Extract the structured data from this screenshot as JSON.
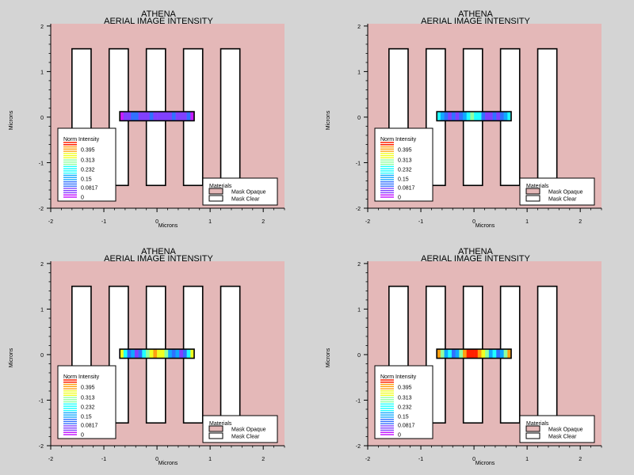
{
  "chart_data": [
    {
      "type": "heatmap",
      "title": "ATHENA",
      "subtitle": "AERIAL IMAGE INTENSITY",
      "xlabel": "Microns",
      "ylabel": "Microns",
      "xlim": [
        -2,
        2.4
      ],
      "ylim": [
        -2,
        2.05
      ],
      "x_ticks": [
        "-2",
        "-1",
        "0",
        "1",
        "2"
      ],
      "y_ticks": [
        "2",
        "1",
        "0",
        "-1",
        "-2"
      ],
      "colorbar": {
        "title": "Norm Intensity",
        "labels": [
          "0.395",
          "0.313",
          "0.232",
          "0.15",
          "0.0817",
          "0"
        ]
      },
      "legend": {
        "title": "Materials",
        "items": [
          {
            "label": "Mask Opaque",
            "color": "#e4b8b8"
          },
          {
            "label": "Mask Clear",
            "color": "#ffffff"
          }
        ]
      },
      "mask_lines": [
        {
          "x0": -1.6,
          "x1": -1.24
        },
        {
          "x0": -0.9,
          "x1": -0.54
        },
        {
          "x0": -0.2,
          "x1": 0.16
        },
        {
          "x0": 0.5,
          "x1": 0.86
        },
        {
          "x0": 1.2,
          "x1": 1.56
        }
      ],
      "mask_y_range": [
        -1.5,
        1.5
      ],
      "intensity_x_range": [
        -0.7,
        0.7
      ],
      "intensity_y_range": [
        -0.08,
        0.12
      ],
      "intensity_profile": [
        0.02,
        0.05,
        0.03,
        0.08,
        0.11,
        0.06,
        0.03,
        0.06,
        0.09,
        0.05,
        0.03,
        0.05,
        0.04,
        0.06,
        0.1,
        0.07,
        0.04,
        0.07,
        0.08,
        0.02
      ]
    },
    {
      "type": "heatmap",
      "title": "ATHENA",
      "subtitle": "AERIAL IMAGE INTENSITY",
      "xlabel": "Microns",
      "ylabel": "Microns",
      "xlim": [
        -2,
        2.4
      ],
      "ylim": [
        -2,
        2.05
      ],
      "x_ticks": [
        "-2",
        "-1",
        "0",
        "1",
        "2"
      ],
      "y_ticks": [
        "2",
        "1",
        "0",
        "-1",
        "-2"
      ],
      "colorbar": {
        "title": "Norm Intensity",
        "labels": [
          "0.395",
          "0.313",
          "0.232",
          "0.15",
          "0.0817",
          "0"
        ]
      },
      "legend": {
        "title": "Materials",
        "items": [
          {
            "label": "Mask Opaque",
            "color": "#e4b8b8"
          },
          {
            "label": "Mask Clear",
            "color": "#ffffff"
          }
        ]
      },
      "mask_lines": [
        {
          "x0": -1.6,
          "x1": -1.24
        },
        {
          "x0": -0.9,
          "x1": -0.54
        },
        {
          "x0": -0.2,
          "x1": 0.16
        },
        {
          "x0": 0.5,
          "x1": 0.86
        },
        {
          "x0": 1.2,
          "x1": 1.56
        }
      ],
      "mask_y_range": [
        -1.5,
        1.5
      ],
      "intensity_x_range": [
        -0.7,
        0.7
      ],
      "intensity_y_range": [
        -0.08,
        0.12
      ],
      "intensity_profile": [
        0.19,
        0.17,
        0.08,
        0.05,
        0.09,
        0.06,
        0.12,
        0.17,
        0.21,
        0.23,
        0.22,
        0.18,
        0.11,
        0.07,
        0.05,
        0.09,
        0.06,
        0.11,
        0.17,
        0.19
      ]
    },
    {
      "type": "heatmap",
      "title": "ATHENA",
      "subtitle": "AERIAL IMAGE INTENSITY",
      "xlabel": "Microns",
      "ylabel": "Microns",
      "xlim": [
        -2,
        2.4
      ],
      "ylim": [
        -2,
        2.05
      ],
      "x_ticks": [
        "-2",
        "-1",
        "0",
        "1",
        "2"
      ],
      "y_ticks": [
        "2",
        "1",
        "0",
        "-1",
        "-2"
      ],
      "colorbar": {
        "title": "Norm Intensity",
        "labels": [
          "0.395",
          "0.313",
          "0.232",
          "0.15",
          "0.0817",
          "0"
        ]
      },
      "legend": {
        "title": "Materials",
        "items": [
          {
            "label": "Mask Opaque",
            "color": "#e4b8b8"
          },
          {
            "label": "Mask Clear",
            "color": "#ffffff"
          }
        ]
      },
      "mask_lines": [
        {
          "x0": -1.6,
          "x1": -1.24
        },
        {
          "x0": -0.9,
          "x1": -0.54
        },
        {
          "x0": -0.2,
          "x1": 0.16
        },
        {
          "x0": 0.5,
          "x1": 0.86
        },
        {
          "x0": 1.2,
          "x1": 1.56
        }
      ],
      "mask_y_range": [
        -1.5,
        1.5
      ],
      "intensity_x_range": [
        -0.7,
        0.7
      ],
      "intensity_y_range": [
        -0.08,
        0.12
      ],
      "intensity_profile": [
        0.3,
        0.2,
        0.1,
        0.14,
        0.07,
        0.12,
        0.2,
        0.26,
        0.3,
        0.33,
        0.32,
        0.29,
        0.24,
        0.17,
        0.1,
        0.14,
        0.07,
        0.11,
        0.2,
        0.3
      ]
    },
    {
      "type": "heatmap",
      "title": "ATHENA",
      "subtitle": "AERIAL IMAGE INTENSITY",
      "xlabel": "Microns",
      "ylabel": "Microns",
      "xlim": [
        -2,
        2.4
      ],
      "ylim": [
        -2,
        2.05
      ],
      "x_ticks": [
        "-2",
        "-1",
        "0",
        "1",
        "2"
      ],
      "y_ticks": [
        "2",
        "1",
        "0",
        "-1",
        "-2"
      ],
      "colorbar": {
        "title": "Norm Intensity",
        "labels": [
          "0.395",
          "0.313",
          "0.232",
          "0.15",
          "0.0817",
          "0"
        ]
      },
      "legend": {
        "title": "Materials",
        "items": [
          {
            "label": "Mask Opaque",
            "color": "#e4b8b8"
          },
          {
            "label": "Mask Clear",
            "color": "#ffffff"
          }
        ]
      },
      "mask_lines": [
        {
          "x0": -1.6,
          "x1": -1.24
        },
        {
          "x0": -0.9,
          "x1": -0.54
        },
        {
          "x0": -0.2,
          "x1": 0.16
        },
        {
          "x0": 0.5,
          "x1": 0.86
        },
        {
          "x0": 1.2,
          "x1": 1.56
        }
      ],
      "mask_y_range": [
        -1.5,
        1.5
      ],
      "intensity_x_range": [
        -0.7,
        0.7
      ],
      "intensity_y_range": [
        -0.08,
        0.12
      ],
      "intensity_profile": [
        0.37,
        0.27,
        0.15,
        0.2,
        0.09,
        0.16,
        0.26,
        0.34,
        0.38,
        0.4,
        0.39,
        0.36,
        0.31,
        0.24,
        0.15,
        0.2,
        0.09,
        0.15,
        0.27,
        0.37
      ]
    }
  ],
  "colors": {
    "background": "#d4d4d4",
    "plot_area": "#e4b8b8",
    "mask_clear": "#ffffff",
    "outline": "#000000",
    "colormap": [
      "#c61eff",
      "#8040ff",
      "#3070ff",
      "#10a8ff",
      "#20ffff",
      "#90ffa0",
      "#f0ff20",
      "#ffa010",
      "#ff2000"
    ]
  }
}
